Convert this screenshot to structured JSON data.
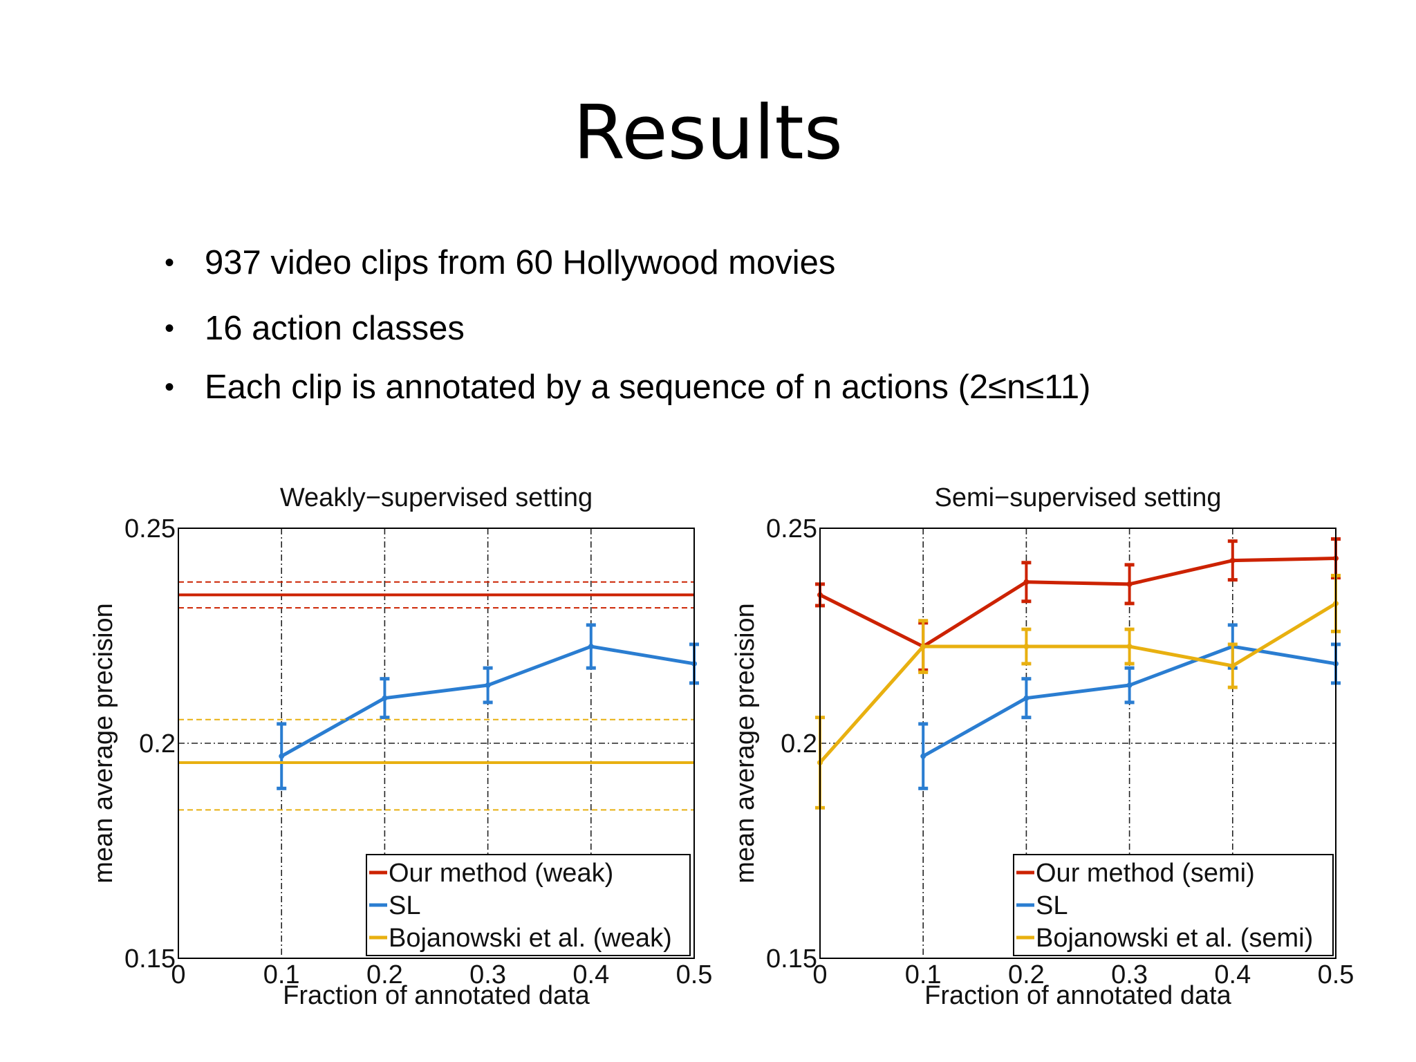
{
  "slide": {
    "title": "Results",
    "bullets": [
      "937 video clips from 60 Hollywood movies",
      "16 action classes",
      "Each clip is annotated by a sequence of n actions (2≤n≤11)"
    ]
  },
  "colors": {
    "red": "#cc2200",
    "blue": "#2a7dd1",
    "yellow": "#e8b010",
    "frame": "#000000"
  },
  "chart_data": [
    {
      "type": "line",
      "title": "Weakly−supervised setting",
      "xlabel": "Fraction of annotated data",
      "ylabel": "mean average precision",
      "xlim": [
        0,
        0.5
      ],
      "ylim": [
        0.15,
        0.25
      ],
      "xticks": [
        0,
        0.1,
        0.2,
        0.3,
        0.4,
        0.5
      ],
      "xtick_labels": [
        "0",
        "0.1",
        "0.2",
        "0.3",
        "0.4",
        "0.5"
      ],
      "yticks": [
        0.15,
        0.2,
        0.25
      ],
      "ytick_labels": [
        "0.15",
        "0.2",
        "0.25"
      ],
      "grid": "dash-dot",
      "legend_position": "bottom-right",
      "series": [
        {
          "name": "Our method (weak)",
          "color": "#cc2200",
          "style": "constant",
          "value": 0.2345,
          "band": [
            0.2315,
            0.2375
          ]
        },
        {
          "name": "SL",
          "color": "#2a7dd1",
          "style": "errorbar",
          "x": [
            0.1,
            0.2,
            0.3,
            0.4,
            0.5
          ],
          "y": [
            0.197,
            0.2105,
            0.2135,
            0.2225,
            0.2185
          ],
          "err": [
            0.0075,
            0.0045,
            0.004,
            0.005,
            0.0045
          ]
        },
        {
          "name": "Bojanowski et al. (weak)",
          "color": "#e8b010",
          "style": "constant",
          "value": 0.1955,
          "band": [
            0.1845,
            0.2055
          ]
        }
      ]
    },
    {
      "type": "line",
      "title": "Semi−supervised setting",
      "xlabel": "Fraction of annotated data",
      "ylabel": "mean average precision",
      "xlim": [
        0,
        0.5
      ],
      "ylim": [
        0.15,
        0.25
      ],
      "xticks": [
        0,
        0.1,
        0.2,
        0.3,
        0.4,
        0.5
      ],
      "xtick_labels": [
        "0",
        "0.1",
        "0.2",
        "0.3",
        "0.4",
        "0.5"
      ],
      "yticks": [
        0.15,
        0.2,
        0.25
      ],
      "ytick_labels": [
        "0.15",
        "0.2",
        "0.25"
      ],
      "grid": "dash-dot",
      "legend_position": "bottom-right",
      "series": [
        {
          "name": "Our method (semi)",
          "color": "#cc2200",
          "style": "errorbar",
          "x": [
            0,
            0.1,
            0.2,
            0.3,
            0.4,
            0.5
          ],
          "y": [
            0.2345,
            0.2225,
            0.2375,
            0.237,
            0.2425,
            0.243
          ],
          "err": [
            0.0025,
            0.0055,
            0.0045,
            0.0045,
            0.0045,
            0.0045
          ]
        },
        {
          "name": "SL",
          "color": "#2a7dd1",
          "style": "errorbar",
          "x": [
            0.1,
            0.2,
            0.3,
            0.4,
            0.5
          ],
          "y": [
            0.197,
            0.2105,
            0.2135,
            0.2225,
            0.2185
          ],
          "err": [
            0.0075,
            0.0045,
            0.004,
            0.005,
            0.0045
          ]
        },
        {
          "name": "Bojanowski et al. (semi)",
          "color": "#e8b010",
          "style": "errorbar",
          "x": [
            0,
            0.1,
            0.2,
            0.3,
            0.4,
            0.5
          ],
          "y": [
            0.1955,
            0.2225,
            0.2225,
            0.2225,
            0.218,
            0.2325
          ],
          "err": [
            0.0105,
            0.006,
            0.004,
            0.004,
            0.005,
            0.0065
          ]
        }
      ]
    }
  ]
}
